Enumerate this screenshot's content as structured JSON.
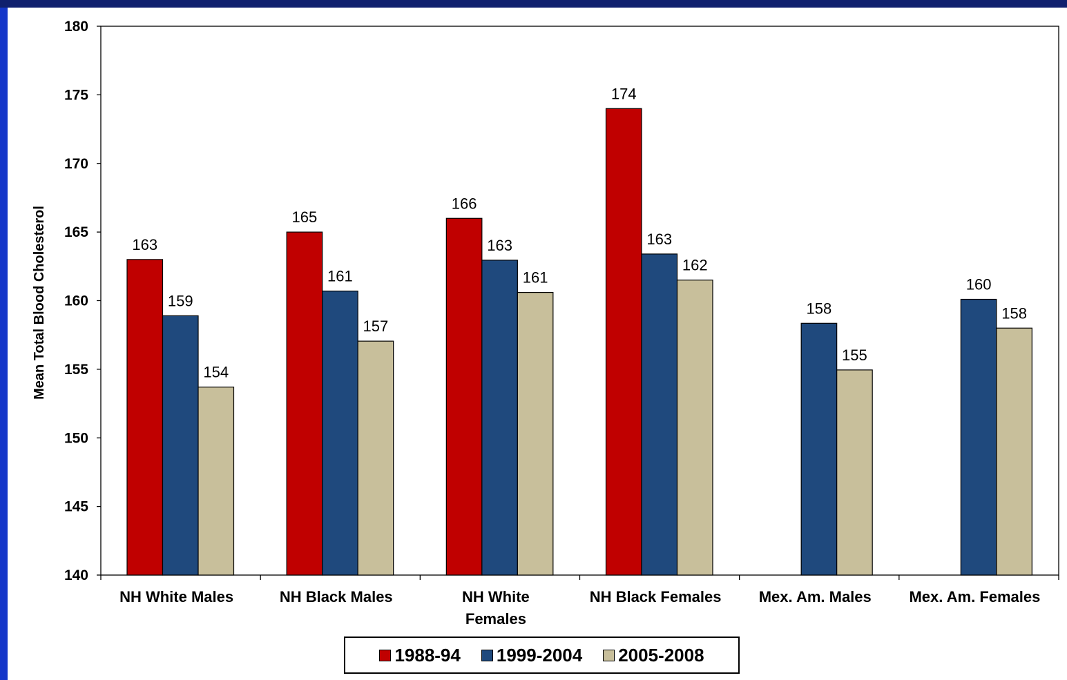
{
  "chart_data": {
    "type": "bar",
    "ylabel": "Mean Total Blood Cholesterol",
    "ylim": [
      140,
      180
    ],
    "yticks": [
      140,
      145,
      150,
      155,
      160,
      165,
      170,
      175,
      180
    ],
    "categories": [
      [
        "NH White Males"
      ],
      [
        "NH Black Males"
      ],
      [
        "NH White",
        "Females"
      ],
      [
        "NH Black Females"
      ],
      [
        "Mex. Am. Males"
      ],
      [
        "Mex. Am. Females"
      ]
    ],
    "series": [
      {
        "name": "1988-94",
        "color": "#c00000",
        "values": [
          163,
          165,
          166,
          174,
          null,
          null
        ],
        "labels": [
          "163",
          "165",
          "166",
          "174",
          null,
          null
        ]
      },
      {
        "name": "1999-2004",
        "color": "#1f497d",
        "values": [
          158.9,
          160.7,
          162.95,
          163.4,
          158.35,
          160.1
        ],
        "labels": [
          "159",
          "161",
          "163",
          "163",
          "158",
          "160"
        ]
      },
      {
        "name": "2005-2008",
        "color": "#c8bf9b",
        "values": [
          153.7,
          157.05,
          160.6,
          161.5,
          154.95,
          158
        ],
        "labels": [
          "154",
          "157",
          "161",
          "162",
          "155",
          "158"
        ]
      }
    ],
    "grid": false,
    "legend_position": "bottom"
  }
}
